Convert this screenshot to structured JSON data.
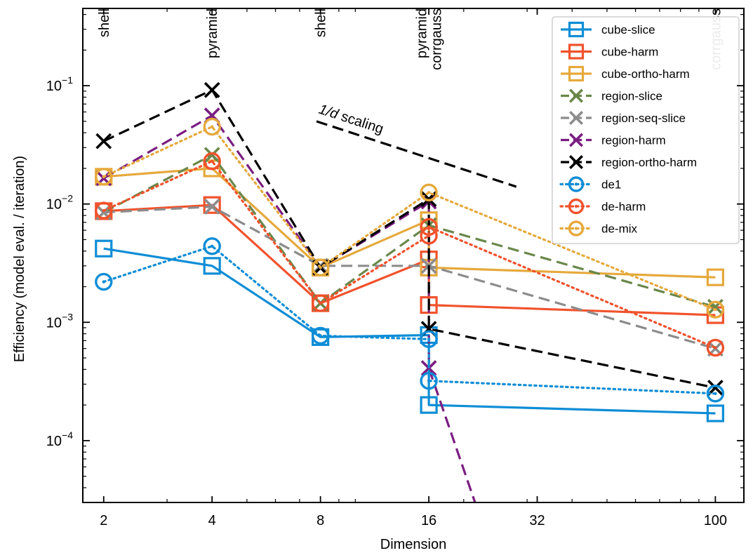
{
  "chart_data": {
    "type": "line",
    "xlabel": "Dimension",
    "ylabel": "Efficiency (model eval. / iteration)",
    "xscale": "log",
    "yscale": "log",
    "xlim": [
      1.75,
      120
    ],
    "ylim": [
      3e-05,
      0.45
    ],
    "x_ticks": [
      2,
      4,
      8,
      16,
      32,
      100
    ],
    "x_tick_labels": [
      "2",
      "4",
      "8",
      "16",
      "32",
      "100"
    ],
    "y_ticks": [
      0.0001,
      0.001,
      0.01,
      0.1
    ],
    "y_tick_base": "10",
    "y_tick_exponents": [
      "−4",
      "−3",
      "−2",
      "−1"
    ],
    "legend_position": "top-right",
    "grid": false,
    "top_annotations": [
      {
        "x": 2,
        "lines": [
          "shell"
        ]
      },
      {
        "x": 4,
        "lines": [
          "pyramid"
        ]
      },
      {
        "x": 8,
        "lines": [
          "shell"
        ]
      },
      {
        "x": 16,
        "lines": [
          "pyramid",
          "corrgauss"
        ]
      },
      {
        "x": 100,
        "lines": [
          "corrgauss"
        ]
      }
    ],
    "scaling_annotation": {
      "label_math": "1/d",
      "label_text": " scaling",
      "line": [
        [
          7.8,
          0.05
        ],
        [
          28,
          0.014
        ]
      ]
    },
    "series": [
      {
        "name": "cube-slice",
        "color": "#0e8dd6",
        "dash": "solid",
        "marker": "square",
        "points": [
          [
            2,
            0.0042
          ],
          [
            4,
            0.003
          ],
          [
            8,
            0.00075
          ],
          [
            16,
            0.00078
          ],
          [
            16,
            0.0002
          ],
          [
            100,
            0.00017
          ]
        ]
      },
      {
        "name": "cube-harm",
        "color": "#f1522c",
        "dash": "solid",
        "marker": "square",
        "points": [
          [
            2,
            0.0087
          ],
          [
            4,
            0.0098
          ],
          [
            8,
            0.00145
          ],
          [
            16,
            0.0034
          ],
          [
            16,
            0.0014
          ],
          [
            100,
            0.00115
          ]
        ]
      },
      {
        "name": "cube-ortho-harm",
        "color": "#e6a93c",
        "dash": "solid",
        "marker": "square",
        "points": [
          [
            2,
            0.017
          ],
          [
            4,
            0.02
          ],
          [
            8,
            0.0029
          ],
          [
            16,
            0.0073
          ],
          [
            16,
            0.0029
          ],
          [
            100,
            0.0024
          ]
        ]
      },
      {
        "name": "region-slice",
        "color": "#69874a",
        "dash": "dashed",
        "marker": "x",
        "points": [
          [
            2,
            0.0085
          ],
          [
            4,
            0.026
          ],
          [
            8,
            0.00145
          ],
          [
            16,
            0.0066
          ],
          [
            100,
            0.00135
          ]
        ]
      },
      {
        "name": "region-seq-slice",
        "color": "#8c8c8c",
        "dash": "dashed",
        "marker": "x",
        "points": [
          [
            2,
            0.0085
          ],
          [
            4,
            0.0095
          ],
          [
            8,
            0.003
          ],
          [
            16,
            0.003
          ],
          [
            100,
            0.0006
          ]
        ]
      },
      {
        "name": "region-harm",
        "color": "#7a1d81",
        "dash": "dashed",
        "marker": "x",
        "points": [
          [
            2,
            0.0165
          ],
          [
            4,
            0.056
          ],
          [
            8,
            0.0029
          ],
          [
            16,
            0.0105
          ],
          [
            16,
            0.00041
          ],
          [
            21.5,
            3e-05
          ]
        ]
      },
      {
        "name": "region-ortho-harm",
        "color": "#000000",
        "dash": "dashed",
        "marker": "x",
        "points": [
          [
            2,
            0.034
          ],
          [
            4,
            0.092
          ],
          [
            8,
            0.0029
          ],
          [
            16,
            0.011
          ],
          [
            16,
            0.00088
          ],
          [
            100,
            0.00028
          ]
        ]
      },
      {
        "name": "de1",
        "color": "#0e8dd6",
        "dash": "dotted",
        "marker": "circle",
        "points": [
          [
            2,
            0.0022
          ],
          [
            4,
            0.0044
          ],
          [
            8,
            0.00077
          ],
          [
            16,
            0.00072
          ],
          [
            16,
            0.00032
          ],
          [
            100,
            0.00025
          ]
        ]
      },
      {
        "name": "de-harm",
        "color": "#f1522c",
        "dash": "dotted",
        "marker": "circle",
        "points": [
          [
            2,
            0.0088
          ],
          [
            4,
            0.023
          ],
          [
            8,
            0.00145
          ],
          [
            16,
            0.0054
          ],
          [
            16,
            0.0064
          ],
          [
            100,
            0.00061
          ]
        ]
      },
      {
        "name": "de-mix",
        "color": "#e6a93c",
        "dash": "dotted",
        "marker": "circle",
        "points": [
          [
            2,
            0.017
          ],
          [
            4,
            0.045
          ],
          [
            8,
            0.0029
          ],
          [
            16,
            0.0125
          ],
          [
            100,
            0.00128
          ]
        ]
      }
    ]
  }
}
